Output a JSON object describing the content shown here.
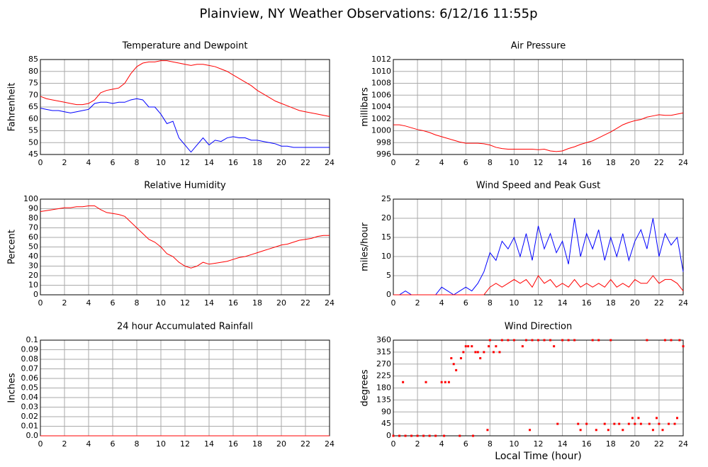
{
  "title": "Plainview, NY Weather Observations: 6/12/16 11:55p",
  "chart_data": [
    {
      "type": "line",
      "title": "Temperature and Dewpoint",
      "ylabel": "Fahrenheit",
      "x": [
        0,
        0.5,
        1,
        1.5,
        2,
        2.5,
        3,
        3.5,
        4,
        4.5,
        5,
        5.5,
        6,
        6.5,
        7,
        7.5,
        8,
        8.5,
        9,
        9.5,
        10,
        10.5,
        11,
        11.5,
        12,
        12.5,
        13,
        13.5,
        14,
        14.5,
        15,
        15.5,
        16,
        16.5,
        17,
        17.5,
        18,
        18.5,
        19,
        19.5,
        20,
        20.5,
        21,
        21.5,
        22,
        22.5,
        23,
        23.5,
        24
      ],
      "series": [
        {
          "color": "#ff0000",
          "values": [
            69.5,
            68.5,
            68,
            67.5,
            67,
            66.5,
            66,
            66,
            66.5,
            68,
            71,
            72,
            72.5,
            73,
            75,
            79,
            82,
            83.5,
            84,
            84,
            84.5,
            84.5,
            84,
            83.5,
            83,
            82.5,
            83,
            83,
            82.5,
            82,
            81,
            80,
            78.5,
            77,
            75.5,
            74,
            72,
            70.5,
            69,
            67.5,
            66.5,
            65.5,
            64.5,
            63.5,
            63,
            62.5,
            62,
            61.5,
            61
          ]
        },
        {
          "color": "#0000ff",
          "values": [
            64.5,
            64,
            63.5,
            63.5,
            63,
            62.5,
            63,
            63.5,
            64,
            66.5,
            67,
            67,
            66.5,
            67,
            67,
            68,
            68.5,
            68,
            65,
            65,
            62,
            58,
            59,
            52,
            49,
            46,
            49,
            52,
            49,
            51,
            50.5,
            52,
            52.5,
            52,
            52,
            51,
            51,
            50.5,
            50,
            49.5,
            48.5,
            48.5,
            48,
            48,
            48,
            48,
            48,
            48,
            48
          ]
        }
      ],
      "xlim": [
        0,
        24
      ],
      "ylim": [
        45,
        85
      ],
      "xticks": [
        0,
        2,
        4,
        6,
        8,
        10,
        12,
        14,
        16,
        18,
        20,
        22,
        24
      ],
      "yticks": [
        45,
        50,
        55,
        60,
        65,
        70,
        75,
        80,
        85
      ],
      "grid": true
    },
    {
      "type": "line",
      "title": "Air Pressure",
      "ylabel": "millibars",
      "x": [
        0,
        0.5,
        1,
        1.5,
        2,
        2.5,
        3,
        3.5,
        4,
        4.5,
        5,
        5.5,
        6,
        6.5,
        7,
        7.5,
        8,
        8.5,
        9,
        9.5,
        10,
        10.5,
        11,
        11.5,
        12,
        12.5,
        13,
        13.5,
        14,
        14.5,
        15,
        15.5,
        16,
        16.5,
        17,
        17.5,
        18,
        18.5,
        19,
        19.5,
        20,
        20.5,
        21,
        21.5,
        22,
        22.5,
        23,
        23.5,
        24
      ],
      "series": [
        {
          "color": "#ff0000",
          "values": [
            1001,
            1001,
            1000.8,
            1000.5,
            1000.2,
            1000,
            999.7,
            999.3,
            999,
            998.7,
            998.4,
            998.1,
            997.9,
            997.9,
            997.9,
            997.8,
            997.6,
            997.2,
            997,
            996.9,
            996.9,
            996.9,
            996.9,
            996.9,
            996.8,
            996.9,
            996.6,
            996.5,
            996.6,
            997,
            997.3,
            997.7,
            998,
            998.3,
            998.8,
            999.3,
            999.8,
            1000.4,
            1001,
            1001.4,
            1001.7,
            1001.9,
            1002.3,
            1002.5,
            1002.7,
            1002.6,
            1002.6,
            1002.8,
            1003
          ]
        }
      ],
      "xlim": [
        0,
        24
      ],
      "ylim": [
        996,
        1012
      ],
      "xticks": [
        0,
        2,
        4,
        6,
        8,
        10,
        12,
        14,
        16,
        18,
        20,
        22,
        24
      ],
      "yticks": [
        996,
        998,
        1000,
        1002,
        1004,
        1006,
        1008,
        1010,
        1012
      ],
      "grid": true
    },
    {
      "type": "line",
      "title": "Relative Humidity",
      "ylabel": "Percent",
      "x": [
        0,
        0.5,
        1,
        1.5,
        2,
        2.5,
        3,
        3.5,
        4,
        4.5,
        5,
        5.5,
        6,
        6.5,
        7,
        7.5,
        8,
        8.5,
        9,
        9.5,
        10,
        10.5,
        11,
        11.5,
        12,
        12.5,
        13,
        13.5,
        14,
        14.5,
        15,
        15.5,
        16,
        16.5,
        17,
        17.5,
        18,
        18.5,
        19,
        19.5,
        20,
        20.5,
        21,
        21.5,
        22,
        22.5,
        23,
        23.5,
        24
      ],
      "series": [
        {
          "color": "#ff0000",
          "values": [
            87,
            88,
            89,
            90,
            91,
            91,
            92,
            92,
            93,
            93,
            89,
            86,
            85,
            84,
            82,
            76,
            70,
            64,
            58,
            55,
            50,
            43,
            40,
            34,
            30,
            28,
            30,
            34,
            32,
            33,
            34,
            35,
            37,
            39,
            40,
            42,
            44,
            46,
            48,
            50,
            52,
            53,
            55,
            57,
            58,
            59,
            61,
            62,
            62
          ]
        }
      ],
      "xlim": [
        0,
        24
      ],
      "ylim": [
        0,
        100
      ],
      "xticks": [
        0,
        2,
        4,
        6,
        8,
        10,
        12,
        14,
        16,
        18,
        20,
        22,
        24
      ],
      "yticks": [
        0,
        10,
        20,
        30,
        40,
        50,
        60,
        70,
        80,
        90,
        100
      ],
      "grid": true
    },
    {
      "type": "line",
      "title": "Wind Speed and Peak Gust",
      "ylabel": "miles/hour",
      "x": [
        0,
        0.5,
        1,
        1.5,
        2,
        2.5,
        3,
        3.5,
        4,
        4.5,
        5,
        5.5,
        6,
        6.5,
        7,
        7.5,
        8,
        8.5,
        9,
        9.5,
        10,
        10.5,
        11,
        11.5,
        12,
        12.5,
        13,
        13.5,
        14,
        14.5,
        15,
        15.5,
        16,
        16.5,
        17,
        17.5,
        18,
        18.5,
        19,
        19.5,
        20,
        20.5,
        21,
        21.5,
        22,
        22.5,
        23,
        23.5,
        24
      ],
      "series": [
        {
          "color": "#0000ff",
          "values": [
            0,
            0,
            1,
            0,
            0,
            0,
            0,
            0,
            2,
            1,
            0,
            1,
            2,
            1,
            3,
            6,
            11,
            9,
            14,
            12,
            15,
            10,
            16,
            9,
            18,
            12,
            16,
            11,
            14,
            8,
            20,
            10,
            16,
            12,
            17,
            9,
            15,
            10,
            16,
            9,
            14,
            17,
            12,
            20,
            10,
            16,
            13,
            15,
            6
          ]
        },
        {
          "color": "#ff0000",
          "values": [
            0,
            0,
            0,
            0,
            0,
            0,
            0,
            0,
            0,
            0,
            0,
            0,
            0,
            0,
            0,
            0,
            2,
            3,
            2,
            3,
            4,
            3,
            4,
            2,
            5,
            3,
            4,
            2,
            3,
            2,
            4,
            2,
            3,
            2,
            3,
            2,
            4,
            2,
            3,
            2,
            4,
            3,
            3,
            5,
            3,
            4,
            4,
            3,
            1
          ]
        }
      ],
      "xlim": [
        0,
        24
      ],
      "ylim": [
        0,
        25
      ],
      "xticks": [
        0,
        2,
        4,
        6,
        8,
        10,
        12,
        14,
        16,
        18,
        20,
        22,
        24
      ],
      "yticks": [
        0,
        5,
        10,
        15,
        20,
        25
      ],
      "grid": true
    },
    {
      "type": "line",
      "title": "24 hour Accumulated Rainfall",
      "ylabel": "Inches",
      "x": [
        0,
        24
      ],
      "series": [
        {
          "color": "#ff0000",
          "values": [
            0,
            0
          ]
        }
      ],
      "xlim": [
        0,
        24
      ],
      "ylim": [
        0,
        0.1
      ],
      "xticks": [
        0,
        2,
        4,
        6,
        8,
        10,
        12,
        14,
        16,
        18,
        20,
        22,
        24
      ],
      "yticks": [
        {
          "value": 0,
          "label": "0.0"
        },
        0.01,
        0.02,
        0.03,
        0.04,
        0.05,
        0.06,
        0.07,
        0.08,
        0.09,
        0.1
      ],
      "grid": true
    },
    {
      "type": "scatter",
      "title": "Wind Direction",
      "ylabel": "degrees",
      "xlabel": "Local Time (hour)",
      "color": "#ff0000",
      "x": [
        0,
        0.5,
        0.8,
        1,
        1.5,
        2,
        2.5,
        2.7,
        3,
        3.5,
        4,
        4.2,
        4.3,
        4.6,
        4.8,
        5,
        5.2,
        5.5,
        5.6,
        5.8,
        6,
        6.2,
        6.5,
        6.6,
        6.8,
        7,
        7.2,
        7.5,
        7.8,
        7.9,
        8,
        8.3,
        8.5,
        8.8,
        9,
        9.5,
        10,
        10.7,
        11,
        11.3,
        11.5,
        12,
        12.5,
        13,
        13.3,
        13.6,
        14,
        14.5,
        15,
        15.3,
        15.5,
        16,
        16.5,
        16.8,
        17,
        17.5,
        17.8,
        18,
        18.3,
        18.7,
        19,
        19.5,
        19.8,
        20,
        20.3,
        20.5,
        21,
        21.2,
        21.5,
        21.8,
        22,
        22.3,
        22.5,
        22.8,
        23,
        23.3,
        23.5,
        23.7,
        24
      ],
      "y": [
        0,
        0,
        202,
        0,
        0,
        0,
        0,
        202,
        0,
        0,
        202,
        0,
        202,
        202,
        292,
        270,
        247,
        0,
        292,
        315,
        337,
        337,
        337,
        0,
        315,
        315,
        292,
        315,
        22,
        337,
        360,
        315,
        337,
        315,
        360,
        360,
        360,
        337,
        360,
        22,
        360,
        360,
        360,
        360,
        337,
        45,
        360,
        360,
        360,
        45,
        22,
        45,
        360,
        22,
        360,
        45,
        22,
        360,
        45,
        45,
        22,
        45,
        67,
        45,
        67,
        45,
        360,
        45,
        22,
        67,
        45,
        22,
        360,
        45,
        360,
        45,
        67,
        360,
        337
      ],
      "xlim": [
        0,
        24
      ],
      "ylim": [
        0,
        360
      ],
      "xticks": [
        0,
        2,
        4,
        6,
        8,
        10,
        12,
        14,
        16,
        18,
        20,
        22,
        24
      ],
      "yticks": [
        0,
        45,
        90,
        135,
        180,
        225,
        270,
        315,
        360
      ],
      "grid": true
    }
  ]
}
